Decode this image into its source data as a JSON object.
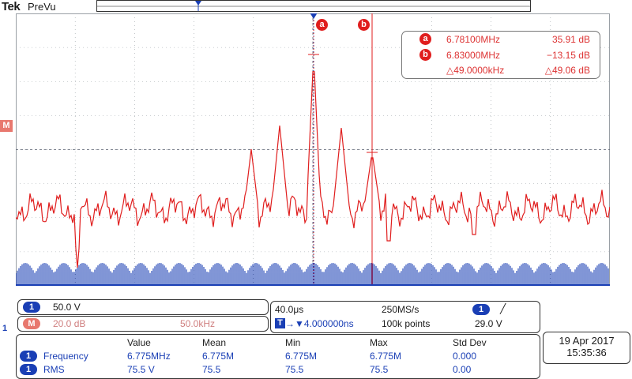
{
  "header": {
    "brand": "Tek",
    "mode": "PreVu"
  },
  "cursors": [
    {
      "id": "a",
      "freq": "6.78100MHz",
      "value": "35.91 dB"
    },
    {
      "id": "b",
      "freq": "6.83000MHz",
      "value": "−13.15 dB"
    }
  ],
  "delta": {
    "freq": "△49.0000kHz",
    "value": "△49.06 dB"
  },
  "markers": {
    "math": "M",
    "ch1": "1"
  },
  "channel1": {
    "num": "1",
    "scale": "50.0 V"
  },
  "math": {
    "label": "M",
    "scale": "20.0 dB",
    "span": "50.0kHz"
  },
  "timebase": {
    "horizontal": "40.0μs",
    "sample_rate": "250MS/s",
    "trigger_ch": "1",
    "trigger_slope": "╱",
    "trigger_pos_label": "T",
    "trigger_pos": "→▼4.000000ns",
    "record_length": "100k points",
    "trigger_level": "29.0 V"
  },
  "measurements": {
    "headers": [
      "Value",
      "Mean",
      "Min",
      "Max",
      "Std Dev"
    ],
    "rows": [
      {
        "ch": "1",
        "name": "Frequency",
        "value": "6.775MHz",
        "mean": "6.775M",
        "min": "6.775M",
        "max": "6.775M",
        "std": "0.000"
      },
      {
        "ch": "1",
        "name": "RMS",
        "value": "75.5 V",
        "mean": "75.5",
        "min": "75.5",
        "max": "75.5",
        "std": "0.00"
      }
    ]
  },
  "datetime": {
    "date": "19 Apr  2017",
    "time": "15:35:36"
  },
  "colors": {
    "trace": "#e01e1e",
    "grid": "#9aa0a6",
    "channel1": "#1a3fb5",
    "math": "#e8786e"
  }
}
